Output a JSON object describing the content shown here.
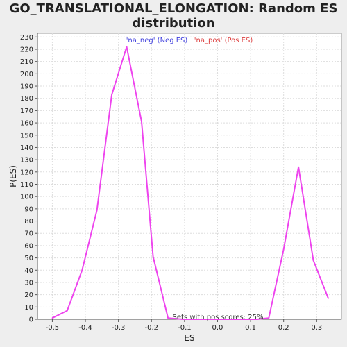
{
  "chart_data": {
    "type": "line",
    "title_lines": [
      "GO_TRANSLATIONAL_ELONGATION: Random ES",
      "distribution"
    ],
    "xlabel": "ES",
    "ylabel": "P(ES)",
    "xlim": [
      -0.545,
      0.375
    ],
    "ylim": [
      0,
      233
    ],
    "x_ticks": [
      -0.5,
      -0.4,
      -0.3,
      -0.2,
      -0.1,
      0.0,
      0.1,
      0.2,
      0.3
    ],
    "x_tick_labels": [
      "-0.5",
      "-0.4",
      "-0.3",
      "-0.2",
      "-0.1",
      "0.0",
      "0.1",
      "0.2",
      "0.3"
    ],
    "y_ticks": [
      0,
      10,
      20,
      30,
      40,
      50,
      60,
      70,
      80,
      90,
      100,
      110,
      120,
      130,
      140,
      150,
      160,
      170,
      180,
      190,
      200,
      210,
      220,
      230
    ],
    "grid": true,
    "legend": [
      {
        "label": "'na_neg' (Neg ES)",
        "color": "#4040dd"
      },
      {
        "label": "'na_pos' (Pos ES)",
        "color": "#dd4040"
      }
    ],
    "annotation": "Sets with pos scores: 25%",
    "series": [
      {
        "color": "#ee44ee",
        "x": [
          -0.5,
          -0.455,
          -0.41,
          -0.365,
          -0.32,
          -0.275,
          -0.23,
          -0.195,
          -0.15,
          -0.105,
          -0.06,
          -0.015,
          0.03,
          0.075,
          0.12,
          0.155,
          0.2,
          0.245,
          0.29,
          0.335
        ],
        "y": [
          1,
          7,
          40,
          89,
          183,
          222,
          161,
          51,
          1,
          0,
          0,
          0,
          0,
          0,
          0,
          1,
          57,
          124,
          48,
          17
        ]
      }
    ]
  }
}
